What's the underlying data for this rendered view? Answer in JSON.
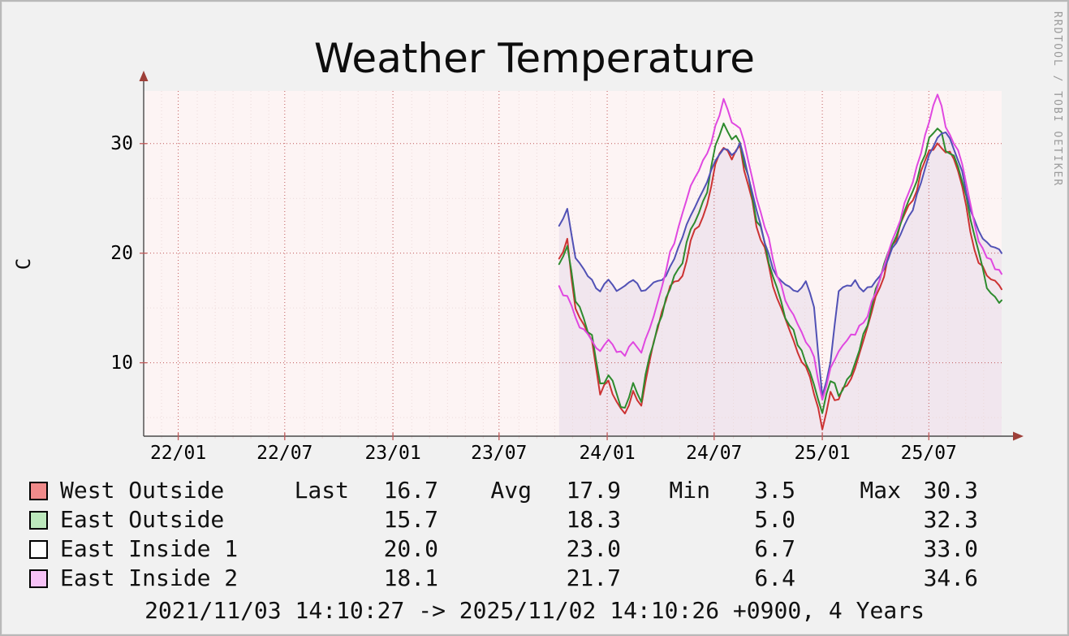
{
  "watermark": "RRDTOOL / TOBI OETIKER",
  "footer": "2021/11/03 14:10:27 -> 2025/11/02 14:10:26 +0900, 4 Years",
  "legend": {
    "col_headers": [
      "Last",
      "Avg",
      "Min",
      "Max"
    ],
    "rows": [
      {
        "name": "West Outside",
        "swatch": "#f08a8a",
        "line": "#cc3333",
        "last": "16.7",
        "avg": "17.9",
        "min": "3.5",
        "max": "30.3"
      },
      {
        "name": "East Outside",
        "swatch": "#bce8bc",
        "line": "#2e8b2e",
        "last": "15.7",
        "avg": "18.3",
        "min": "5.0",
        "max": "32.3"
      },
      {
        "name": "East Inside 1",
        "swatch": "#ffffff",
        "line": "#5151b5",
        "last": "20.0",
        "avg": "23.0",
        "min": "6.7",
        "max": "33.0"
      },
      {
        "name": "East Inside 2",
        "swatch": "#f6c2f6",
        "line": "#e048e0",
        "last": "18.1",
        "avg": "21.7",
        "min": "6.4",
        "max": "34.6"
      }
    ]
  },
  "chart_data": {
    "type": "line",
    "title": "Weather Temperature",
    "ylabel": "C",
    "xlabel": "",
    "ylim": [
      3.3,
      34.8
    ],
    "y_major_ticks": [
      10,
      20,
      30
    ],
    "y_minor_step": 5,
    "x_window_weeks": 208.6,
    "x_ticks": [
      {
        "week": 8.4,
        "label": "22/01"
      },
      {
        "week": 34.3,
        "label": "22/07"
      },
      {
        "week": 60.6,
        "label": "23/01"
      },
      {
        "week": 86.4,
        "label": "23/07"
      },
      {
        "week": 112.7,
        "label": "24/01"
      },
      {
        "week": 138.7,
        "label": "24/07"
      },
      {
        "week": 165.0,
        "label": "25/01"
      },
      {
        "week": 190.9,
        "label": "25/07"
      }
    ],
    "x_start_week": 101,
    "x_step_weeks": 2,
    "grid": true,
    "legend_position": "bottom",
    "plot_bg": "#fdf4f4",
    "grid_major_color": "#c05a5a",
    "grid_minor_color": "#ecd9d9",
    "axis_color": "#4a4a4a",
    "arrow_color": "#9e3f38",
    "series": [
      {
        "name": "West Outside",
        "color": "#cc3333",
        "jitter": 1.1,
        "values": [
          19.5,
          21.5,
          15.0,
          13.5,
          12.0,
          7.0,
          8.5,
          6.5,
          5.5,
          7.5,
          6.0,
          10.0,
          13.0,
          15.5,
          17.5,
          18.0,
          21.0,
          22.5,
          24.5,
          28.0,
          29.5,
          28.5,
          30.0,
          26.0,
          22.5,
          20.5,
          17.0,
          15.0,
          13.0,
          11.0,
          9.5,
          7.0,
          4.0,
          7.5,
          6.5,
          8.0,
          9.5,
          12.0,
          14.5,
          17.0,
          19.5,
          21.0,
          23.5,
          25.0,
          27.5,
          29.5,
          30.0,
          29.0,
          28.5,
          26.0,
          22.0,
          19.0,
          18.0,
          17.5,
          16.7
        ]
      },
      {
        "name": "East Outside",
        "color": "#2e8b2e",
        "jitter": 1.1,
        "values": [
          19.0,
          20.5,
          15.5,
          14.0,
          12.5,
          8.0,
          9.0,
          7.0,
          6.0,
          8.0,
          6.5,
          10.5,
          13.5,
          16.0,
          18.0,
          19.0,
          22.0,
          23.5,
          25.5,
          30.0,
          32.0,
          30.5,
          30.0,
          27.0,
          23.0,
          21.0,
          18.0,
          15.5,
          13.5,
          11.5,
          10.0,
          8.0,
          5.5,
          8.5,
          7.0,
          8.5,
          10.0,
          12.5,
          15.0,
          17.5,
          20.0,
          21.5,
          24.0,
          25.5,
          28.0,
          30.5,
          31.5,
          29.5,
          29.0,
          26.5,
          23.0,
          20.0,
          17.0,
          16.0,
          15.7
        ]
      },
      {
        "name": "East Inside 1",
        "color": "#5151b5",
        "jitter": 0.5,
        "fill": "rgba(148,118,194,0.11)",
        "values": [
          22.5,
          24.0,
          19.5,
          18.5,
          17.5,
          16.5,
          17.5,
          16.5,
          17.0,
          17.5,
          16.5,
          17.0,
          17.5,
          18.0,
          19.5,
          21.5,
          23.5,
          25.0,
          26.5,
          28.5,
          29.5,
          29.0,
          30.0,
          27.0,
          24.0,
          21.0,
          18.5,
          17.5,
          17.0,
          16.5,
          17.5,
          15.0,
          7.0,
          10.0,
          16.5,
          17.0,
          17.5,
          16.5,
          17.0,
          18.0,
          19.5,
          21.0,
          22.5,
          24.0,
          26.5,
          29.0,
          30.5,
          31.0,
          29.5,
          27.5,
          24.0,
          22.0,
          21.0,
          20.5,
          20.0
        ]
      },
      {
        "name": "East Inside 2",
        "color": "#e048e0",
        "jitter": 0.9,
        "values": [
          17.0,
          16.0,
          14.0,
          13.0,
          12.0,
          11.0,
          12.0,
          11.0,
          10.5,
          12.0,
          11.0,
          13.0,
          15.5,
          18.5,
          21.0,
          23.5,
          26.0,
          27.5,
          29.0,
          31.5,
          34.0,
          32.0,
          31.5,
          28.5,
          25.0,
          22.5,
          19.5,
          17.0,
          15.0,
          13.5,
          12.0,
          10.5,
          6.5,
          9.5,
          11.0,
          12.0,
          12.5,
          13.5,
          15.5,
          17.5,
          20.0,
          22.0,
          24.5,
          26.5,
          29.0,
          32.0,
          34.5,
          31.5,
          30.0,
          28.0,
          24.5,
          21.0,
          19.5,
          18.5,
          18.1
        ]
      }
    ]
  }
}
